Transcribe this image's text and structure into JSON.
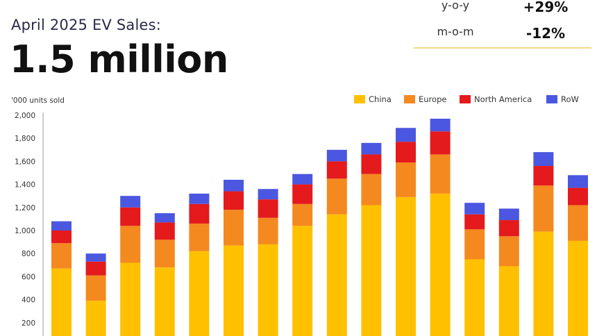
{
  "header": {
    "subtitle": "April 2025 EV Sales:",
    "headline": "1.5 million"
  },
  "stats": [
    {
      "label": "y-o-y",
      "value": "+29%"
    },
    {
      "label": "m-o-m",
      "value": "-12%"
    }
  ],
  "chart_data": {
    "type": "bar",
    "stacked": true,
    "unit_label": "'000 units sold",
    "yticks": [
      "200",
      "400",
      "600",
      "800",
      "1,000",
      "1,200",
      "1,400",
      "1,600",
      "1,800",
      "2,000"
    ],
    "ylim": [
      0,
      2000
    ],
    "grid": false,
    "legend_position": "top-right",
    "categories": [
      "",
      "",
      "",
      "",
      "",
      "",
      "",
      "",
      "",
      "",
      "",
      "",
      "",
      "",
      "",
      ""
    ],
    "series": [
      {
        "name": "China",
        "color": "#FFC000",
        "values": [
          670,
          390,
          720,
          680,
          820,
          870,
          880,
          1040,
          1140,
          1220,
          1290,
          1320,
          750,
          690,
          990,
          910
        ]
      },
      {
        "name": "Europe",
        "color": "#F4891F",
        "values": [
          220,
          220,
          320,
          240,
          240,
          310,
          230,
          190,
          310,
          270,
          300,
          340,
          260,
          260,
          400,
          310
        ]
      },
      {
        "name": "North America",
        "color": "#E41A1C",
        "values": [
          110,
          120,
          160,
          150,
          170,
          160,
          160,
          170,
          150,
          170,
          180,
          200,
          130,
          140,
          170,
          150
        ]
      },
      {
        "name": "RoW",
        "color": "#4B57E0",
        "values": [
          80,
          70,
          100,
          80,
          90,
          100,
          90,
          90,
          100,
          100,
          120,
          110,
          100,
          100,
          120,
          110
        ]
      }
    ]
  }
}
